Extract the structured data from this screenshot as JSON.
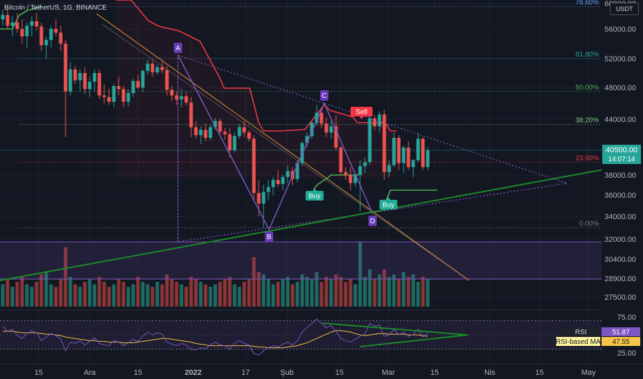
{
  "header": {
    "symbol_title": "Bitcoin / TetherUS, 1G, BINANCE",
    "currency": "USDT"
  },
  "price_axis": {
    "ticks": [
      "60000.00",
      "56000.00",
      "52000.00",
      "48000.00",
      "44000.00",
      "40500.00",
      "38000.00",
      "36000.00",
      "34000.00",
      "32000.00",
      "30400.00",
      "28900.00",
      "27500.00"
    ],
    "current_price": "40500.00",
    "countdown": "14:07:14"
  },
  "rsi_axis": {
    "ticks": [
      "75.00",
      "25.00"
    ]
  },
  "time_axis": {
    "labels": [
      "15",
      "Ara",
      "15",
      "2022",
      "17",
      "Şub",
      "15",
      "Mar",
      "15",
      "Nis",
      "15",
      "May"
    ]
  },
  "fib_levels": [
    {
      "label": "78.60%",
      "price": 59500,
      "color": "#5b9cf6"
    },
    {
      "label": "61.80%",
      "price": 52000,
      "color": "#26a69a"
    },
    {
      "label": "50.00%",
      "price": 47500,
      "color": "#4caf50"
    },
    {
      "label": "38.20%",
      "price": 43400,
      "color": "#81c784"
    },
    {
      "label": "23.60%",
      "price": 39300,
      "color": "#f23645"
    },
    {
      "label": "0.00%",
      "price": 33000,
      "color": "#787b86"
    }
  ],
  "pattern_points": [
    {
      "label": "A"
    },
    {
      "label": "B"
    },
    {
      "label": "C"
    },
    {
      "label": "D"
    }
  ],
  "signals": [
    {
      "label": "Sell",
      "color": "#f23645"
    },
    {
      "label": "Buy",
      "color": "#22ab94"
    },
    {
      "label": "Buy",
      "color": "#22ab94"
    }
  ],
  "rsi": {
    "label": "RSI",
    "value": "51.87",
    "ma_label": "RSI-based MA",
    "ma_value": "47.55",
    "color": "#7e57c2",
    "ma_color": "#f7c548"
  },
  "colors": {
    "up": "#26a69a",
    "down": "#ef5350",
    "background": "#131722",
    "grid": "#1e222d",
    "trend_green": "#1b8c28",
    "trend_orange": "#c88339",
    "pattern": "#7e57c2",
    "stop_red": "#f23645",
    "stop_green": "#4caf50"
  },
  "chart_data": {
    "type": "candlestick",
    "symbol": "BTCUSDT",
    "timeframe": "1G",
    "ylim": [
      27500,
      61000
    ],
    "series": [
      {
        "name": "BTCUSDT",
        "values": [
          [
            57500,
            59000,
            56500,
            58200
          ],
          [
            58200,
            59500,
            56000,
            56500
          ],
          [
            56500,
            58000,
            55000,
            57000
          ],
          [
            57000,
            58500,
            55500,
            56000
          ],
          [
            56000,
            57500,
            54000,
            55000
          ],
          [
            55000,
            57000,
            53500,
            56500
          ],
          [
            56500,
            58000,
            55000,
            57200
          ],
          [
            57200,
            58500,
            55800,
            56400
          ],
          [
            56400,
            57000,
            53000,
            53800
          ],
          [
            53800,
            55000,
            52000,
            54500
          ],
          [
            54500,
            56500,
            53500,
            56000
          ],
          [
            56000,
            57500,
            55000,
            55500
          ],
          [
            55500,
            56500,
            53000,
            54000
          ],
          [
            54000,
            54500,
            42000,
            47500
          ],
          [
            47500,
            51500,
            47000,
            50500
          ],
          [
            50500,
            51000,
            48500,
            49000
          ],
          [
            49000,
            50500,
            47500,
            50000
          ],
          [
            50000,
            50800,
            47200,
            47800
          ],
          [
            47800,
            49500,
            46800,
            48800
          ],
          [
            48800,
            50500,
            47500,
            50000
          ],
          [
            50000,
            50500,
            46500,
            47000
          ],
          [
            47000,
            48500,
            46000,
            46800
          ],
          [
            46800,
            47800,
            45800,
            46200
          ],
          [
            46200,
            48500,
            45500,
            48200
          ],
          [
            48200,
            49500,
            47000,
            47800
          ],
          [
            47800,
            48200,
            45500,
            46200
          ],
          [
            46200,
            47800,
            45600,
            47300
          ],
          [
            47300,
            49200,
            46800,
            48900
          ],
          [
            48900,
            49800,
            47800,
            48000
          ],
          [
            48000,
            50500,
            47500,
            50300
          ],
          [
            50300,
            51800,
            49800,
            51300
          ],
          [
            51300,
            51800,
            49500,
            50100
          ],
          [
            50100,
            51200,
            49800,
            50800
          ],
          [
            50800,
            51600,
            50000,
            50400
          ],
          [
            50400,
            51000,
            47000,
            47700
          ],
          [
            47700,
            48200,
            46300,
            47000
          ],
          [
            47000,
            47500,
            45800,
            46500
          ],
          [
            46500,
            47800,
            45500,
            46900
          ],
          [
            46900,
            47500,
            45800,
            46100
          ],
          [
            46100,
            46800,
            42000,
            43100
          ],
          [
            43100,
            43800,
            41800,
            42200
          ],
          [
            42200,
            43200,
            41200,
            42800
          ],
          [
            42800,
            43500,
            41500,
            41900
          ],
          [
            41900,
            43400,
            41600,
            43100
          ],
          [
            43100,
            44200,
            42800,
            43800
          ],
          [
            43800,
            44100,
            42300,
            42600
          ],
          [
            42600,
            43000,
            41700,
            42300
          ],
          [
            42300,
            43000,
            39800,
            40500
          ],
          [
            40500,
            42500,
            40300,
            42100
          ],
          [
            42100,
            43500,
            41800,
            43100
          ],
          [
            43100,
            43800,
            42000,
            42500
          ],
          [
            42500,
            42800,
            41500,
            41800
          ],
          [
            41800,
            42200,
            35500,
            36200
          ],
          [
            36200,
            37500,
            34000,
            35200
          ],
          [
            35200,
            37000,
            33000,
            36300
          ],
          [
            36300,
            37500,
            35500,
            36800
          ],
          [
            36800,
            37800,
            36000,
            37500
          ],
          [
            37500,
            38500,
            36800,
            37100
          ],
          [
            37100,
            38000,
            36500,
            37800
          ],
          [
            37800,
            39000,
            37200,
            38400
          ],
          [
            38400,
            38800,
            37000,
            37600
          ],
          [
            37600,
            39500,
            37300,
            39200
          ],
          [
            39200,
            41500,
            38900,
            41300
          ],
          [
            41300,
            42500,
            40800,
            42100
          ],
          [
            42100,
            43800,
            41800,
            43600
          ],
          [
            43600,
            45800,
            43300,
            44800
          ],
          [
            44800,
            45500,
            43000,
            43500
          ],
          [
            43500,
            44200,
            42000,
            42500
          ],
          [
            42500,
            43800,
            41800,
            43200
          ],
          [
            43200,
            44500,
            40500,
            40800
          ],
          [
            40800,
            41000,
            38000,
            38300
          ],
          [
            38300,
            38800,
            37500,
            38000
          ],
          [
            38000,
            38800,
            36500,
            37200
          ],
          [
            37200,
            38200,
            36800,
            38000
          ],
          [
            38000,
            39500,
            34500,
            38900
          ],
          [
            38900,
            39800,
            38200,
            39300
          ],
          [
            39300,
            44500,
            39000,
            44100
          ],
          [
            44100,
            44500,
            42800,
            43200
          ],
          [
            43200,
            45000,
            42500,
            44600
          ],
          [
            44600,
            45200,
            37500,
            38300
          ],
          [
            38300,
            39500,
            37800,
            39000
          ],
          [
            39000,
            42500,
            38800,
            41900
          ],
          [
            41900,
            42200,
            38500,
            39200
          ],
          [
            39200,
            41000,
            38200,
            40800
          ],
          [
            40800,
            41500,
            38500,
            38800
          ],
          [
            38800,
            39600,
            37800,
            39500
          ],
          [
            39500,
            42500,
            39300,
            41800
          ],
          [
            41800,
            42000,
            38500,
            38800
          ],
          [
            38800,
            40900,
            38500,
            40500
          ]
        ]
      },
      {
        "name": "Volume",
        "values": [
          9,
          11,
          8,
          10,
          12,
          9,
          8,
          10,
          13,
          14,
          9,
          8,
          11,
          24,
          12,
          9,
          8,
          10,
          11,
          9,
          12,
          10,
          8,
          9,
          11,
          10,
          8,
          9,
          12,
          10,
          9,
          8,
          10,
          9,
          13,
          11,
          10,
          9,
          8,
          12,
          11,
          10,
          9,
          8,
          9,
          10,
          11,
          12,
          9,
          8,
          10,
          11,
          20,
          14,
          13,
          11,
          9,
          10,
          11,
          12,
          9,
          10,
          13,
          12,
          11,
          14,
          10,
          12,
          11,
          13,
          12,
          10,
          11,
          9,
          26,
          12,
          15,
          11,
          13,
          15,
          12,
          13,
          11,
          14,
          12,
          13,
          10,
          12,
          11
        ]
      },
      {
        "name": "RSI",
        "values": [
          62,
          55,
          58,
          50,
          45,
          52,
          56,
          53,
          42,
          47,
          52,
          49,
          44,
          28,
          40,
          38,
          42,
          36,
          41,
          46,
          38,
          36,
          35,
          42,
          40,
          35,
          39,
          44,
          41,
          48,
          54,
          50,
          53,
          51,
          40,
          37,
          35,
          38,
          36,
          30,
          29,
          32,
          31,
          36,
          40,
          36,
          35,
          30,
          38,
          42,
          38,
          36,
          24,
          22,
          28,
          32,
          35,
          33,
          37,
          40,
          36,
          42,
          54,
          60,
          66,
          72,
          66,
          60,
          63,
          55,
          45,
          42,
          40,
          44,
          48,
          52,
          66,
          62,
          64,
          48,
          50,
          58,
          50,
          54,
          48,
          51,
          58,
          47,
          52
        ]
      },
      {
        "name": "RSI-based MA",
        "values": [
          55,
          55,
          55,
          54,
          53,
          53,
          53,
          53,
          52,
          51,
          51,
          50,
          49,
          47,
          46,
          45,
          44,
          43,
          42,
          42,
          41,
          41,
          40,
          40,
          40,
          39,
          39,
          39,
          40,
          41,
          42,
          43,
          44,
          45,
          45,
          44,
          43,
          42,
          41,
          40,
          38,
          37,
          36,
          35,
          35,
          35,
          35,
          35,
          35,
          35,
          35,
          35,
          34,
          33,
          33,
          32,
          32,
          32,
          32,
          33,
          34,
          35,
          37,
          39,
          42,
          45,
          48,
          51,
          54,
          56,
          56,
          55,
          54,
          52,
          50,
          49,
          50,
          51,
          52,
          52,
          51,
          51,
          51,
          51,
          50,
          50,
          50,
          49,
          48
        ]
      }
    ]
  }
}
